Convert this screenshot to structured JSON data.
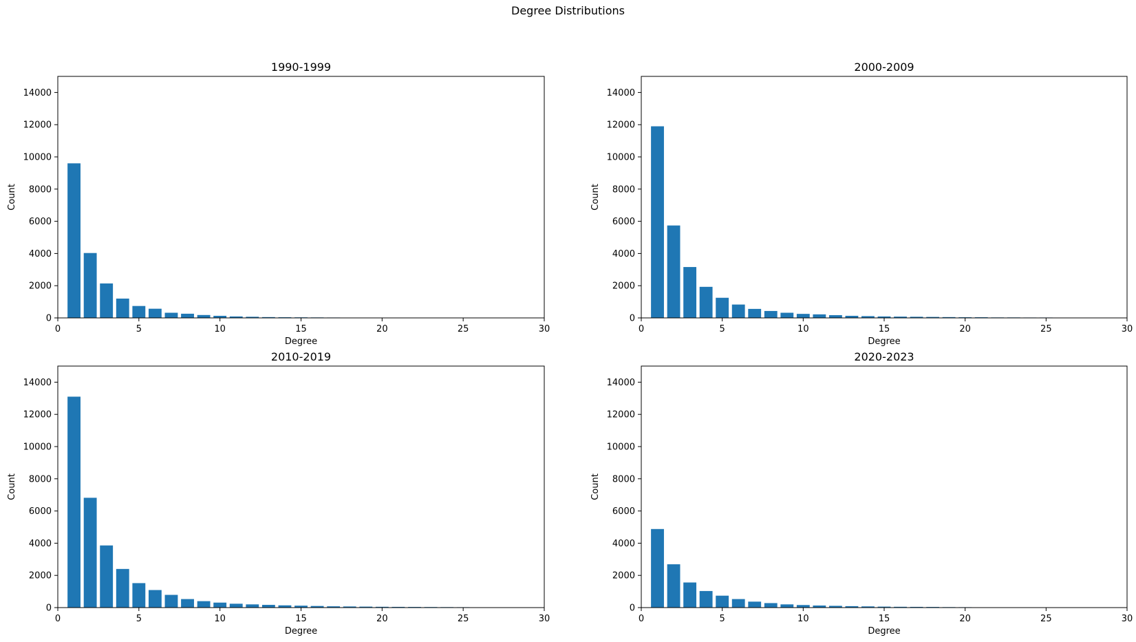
{
  "figure": {
    "title": "Degree Distributions"
  },
  "colors": {
    "bar": "#1f77b4",
    "axis": "#000000",
    "background": "#ffffff"
  },
  "chart_data": [
    {
      "type": "bar",
      "title": "1990-1999",
      "xlabel": "Degree",
      "ylabel": "Count",
      "xlim": [
        0,
        30
      ],
      "ylim": [
        0,
        15000
      ],
      "xticks": [
        0,
        5,
        10,
        15,
        20,
        25,
        30
      ],
      "yticks": [
        0,
        2000,
        4000,
        6000,
        8000,
        10000,
        12000,
        14000
      ],
      "grid": false,
      "x": [
        1,
        2,
        3,
        4,
        5,
        6,
        7,
        8,
        9,
        10,
        11,
        12,
        13,
        14,
        15,
        16,
        17,
        18,
        19,
        20,
        21
      ],
      "values": [
        9600,
        4030,
        2140,
        1200,
        740,
        570,
        320,
        260,
        180,
        130,
        90,
        70,
        50,
        40,
        35,
        30,
        25,
        20,
        20,
        15,
        15
      ]
    },
    {
      "type": "bar",
      "title": "2000-2009",
      "xlabel": "Degree",
      "ylabel": "Count",
      "xlim": [
        0,
        30
      ],
      "ylim": [
        0,
        15000
      ],
      "xticks": [
        0,
        5,
        10,
        15,
        20,
        25,
        30
      ],
      "yticks": [
        0,
        2000,
        4000,
        6000,
        8000,
        10000,
        12000,
        14000
      ],
      "grid": false,
      "x": [
        1,
        2,
        3,
        4,
        5,
        6,
        7,
        8,
        9,
        10,
        11,
        12,
        13,
        14,
        15,
        16,
        17,
        18,
        19,
        20,
        21,
        22,
        23,
        24,
        25,
        26,
        28,
        29
      ],
      "values": [
        11900,
        5740,
        3160,
        1930,
        1250,
        830,
        560,
        430,
        320,
        250,
        220,
        170,
        130,
        110,
        90,
        80,
        70,
        60,
        50,
        40,
        40,
        30,
        30,
        25,
        25,
        20,
        15,
        15
      ]
    },
    {
      "type": "bar",
      "title": "2010-2019",
      "xlabel": "Degree",
      "ylabel": "Count",
      "xlim": [
        0,
        30
      ],
      "ylim": [
        0,
        15000
      ],
      "xticks": [
        0,
        5,
        10,
        15,
        20,
        25,
        30
      ],
      "yticks": [
        0,
        2000,
        4000,
        6000,
        8000,
        10000,
        12000,
        14000
      ],
      "grid": false,
      "x": [
        1,
        2,
        3,
        4,
        5,
        6,
        7,
        8,
        9,
        10,
        11,
        12,
        13,
        14,
        15,
        16,
        17,
        18,
        19,
        20,
        21,
        22,
        23,
        24,
        25,
        26,
        27,
        28
      ],
      "values": [
        13100,
        6820,
        3860,
        2400,
        1520,
        1090,
        790,
        530,
        400,
        310,
        240,
        200,
        170,
        140,
        120,
        100,
        80,
        70,
        60,
        50,
        45,
        40,
        35,
        30,
        25,
        20,
        20,
        15
      ]
    },
    {
      "type": "bar",
      "title": "2020-2023",
      "xlabel": "Degree",
      "ylabel": "Count",
      "xlim": [
        0,
        30
      ],
      "ylim": [
        0,
        15000
      ],
      "xticks": [
        0,
        5,
        10,
        15,
        20,
        25,
        30
      ],
      "yticks": [
        0,
        2000,
        4000,
        6000,
        8000,
        10000,
        12000,
        14000
      ],
      "grid": false,
      "x": [
        1,
        2,
        3,
        4,
        5,
        6,
        7,
        8,
        9,
        10,
        11,
        12,
        13,
        14,
        15,
        16,
        17,
        18,
        19,
        20,
        21,
        22,
        23,
        24,
        26
      ],
      "values": [
        4880,
        2690,
        1560,
        1030,
        740,
        530,
        370,
        280,
        200,
        160,
        130,
        110,
        90,
        75,
        60,
        50,
        45,
        40,
        30,
        25,
        20,
        20,
        15,
        15,
        10
      ]
    }
  ]
}
